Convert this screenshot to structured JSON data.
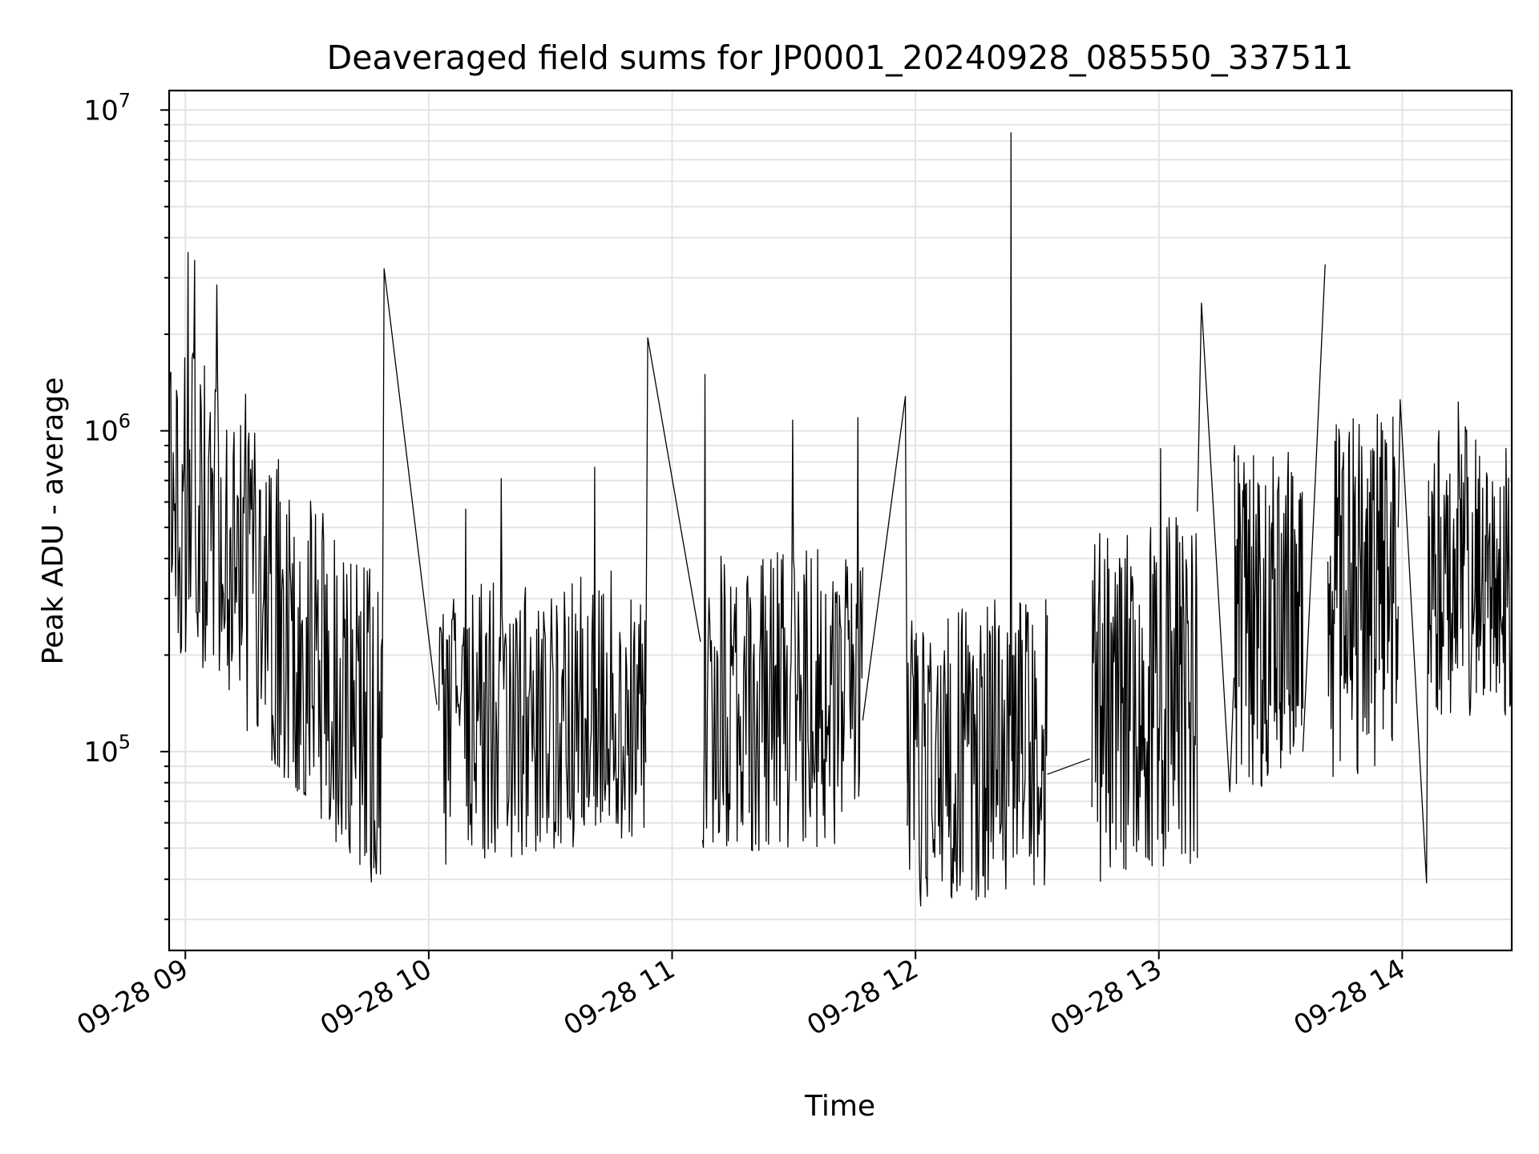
{
  "chart_data": {
    "type": "line",
    "title": "Deaveraged field sums for JP0001_20240928_085550_337511",
    "xlabel": "Time",
    "ylabel": "Peak ADU - average",
    "yscale": "log",
    "grid": true,
    "xlim": [
      "2024-09-28 08:56",
      "2024-09-28 14:27"
    ],
    "ylim": [
      24000,
      11500000
    ],
    "x_ticks": [
      "09-28 09",
      "09-28 10",
      "09-28 11",
      "09-28 12",
      "09-28 13",
      "09-28 14"
    ],
    "y_ticks": [
      {
        "base": "10",
        "exp": "5",
        "value": 100000
      },
      {
        "base": "10",
        "exp": "6",
        "value": 1000000
      },
      {
        "base": "10",
        "exp": "7",
        "value": 10000000
      }
    ],
    "series": [
      {
        "color": "#000000",
        "segments": [
          {
            "start": "2024-09-28 08:56:00",
            "end": "2024-09-28 09:48:30",
            "level_start": 700000,
            "level_end": 110000,
            "spread": 0.32,
            "points": 260,
            "peaks": [
              [
                180,
                3600000
              ],
              [
                240,
                3400000
              ],
              [
                450,
                2850000
              ],
              [
                720,
                1300000
              ]
            ]
          },
          {
            "start": "2024-09-28 10:02:30",
            "end": "2024-09-28 10:53:30",
            "level_start": 120000,
            "level_end": 140000,
            "spread": 0.28,
            "points": 240,
            "peaks": [
              [
                260,
                570000
              ],
              [
                600,
                710000
              ],
              [
                1500,
                770000
              ]
            ]
          },
          {
            "start": "2024-09-28 11:07:30",
            "end": "2024-09-28 11:47:00",
            "level_start": 140000,
            "level_end": 150000,
            "spread": 0.3,
            "points": 200,
            "peaks": [
              [
                35,
                1500000
              ],
              [
                1120,
                1080000
              ],
              [
                1930,
                1100000
              ]
            ]
          },
          {
            "start": "2024-09-28 11:58:00",
            "end": "2024-09-28 12:32:30",
            "level_start": 90000,
            "level_end": 110000,
            "spread": 0.3,
            "points": 190,
            "peaks": [
              [
                1480,
                8500000
              ]
            ]
          },
          {
            "start": "2024-09-28 12:43:30",
            "end": "2024-09-28 13:09:30",
            "level_start": 140000,
            "level_end": 160000,
            "spread": 0.36,
            "points": 150,
            "peaks": [
              [
                1300,
                880000
              ]
            ]
          },
          {
            "start": "2024-09-28 13:18:30",
            "end": "2024-09-28 13:35:30",
            "level_start": 260000,
            "level_end": 260000,
            "spread": 0.34,
            "points": 110,
            "peaks": [
              [
                30,
                900000
              ]
            ]
          },
          {
            "start": "2024-09-28 13:41:30",
            "end": "2024-09-28 13:59:00",
            "level_start": 300000,
            "level_end": 320000,
            "spread": 0.36,
            "points": 110,
            "peaks": [
              [
                360,
                940000
              ]
            ]
          },
          {
            "start": "2024-09-28 14:06:30",
            "end": "2024-09-28 14:27:00",
            "level_start": 360000,
            "level_end": 380000,
            "spread": 0.3,
            "points": 130,
            "peaks": [
              [
                720,
                1230000
              ]
            ]
          }
        ],
        "connectors": [
          [
            "2024-09-28 09:48:30",
            110000,
            "2024-09-28 09:49:00",
            3200000,
            "2024-09-28 10:02:00",
            140000
          ],
          [
            "2024-09-28 10:53:30",
            140000,
            "2024-09-28 10:54:00",
            1950000,
            "2024-09-28 11:07:00",
            220000
          ],
          [
            "2024-09-28 11:47:00",
            125000,
            "2024-09-28 11:57:30",
            1280000,
            "2024-09-28 11:58:00",
            80000
          ],
          [
            "2024-09-28 12:32:30",
            85000,
            "2024-09-28 12:43:00",
            95000
          ],
          [
            "2024-09-28 13:09:30",
            560000,
            "2024-09-28 13:10:30",
            2500000,
            "2024-09-28 13:17:30",
            75000,
            "2024-09-28 13:18:30",
            170000
          ],
          [
            "2024-09-28 13:35:30",
            100000,
            "2024-09-28 13:41:00",
            3300000
          ],
          [
            "2024-09-28 13:59:00",
            500000,
            "2024-09-28 13:59:30",
            1250000,
            "2024-09-28 14:06:00",
            39000,
            "2024-09-28 14:06:30",
            700000
          ]
        ]
      }
    ]
  }
}
